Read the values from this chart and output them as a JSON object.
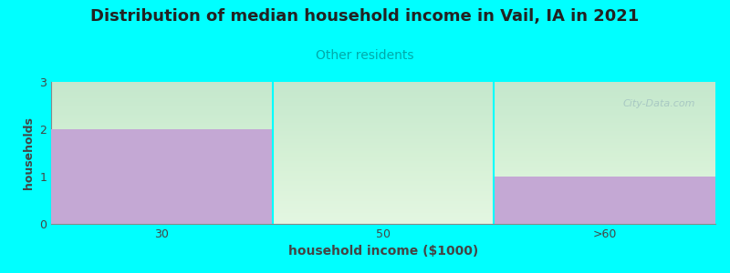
{
  "title": "Distribution of median household income in Vail, IA in 2021",
  "subtitle": "Other residents",
  "xlabel": "household income ($1000)",
  "ylabel": "households",
  "categories": [
    "30",
    "50",
    ">60"
  ],
  "values": [
    2,
    0,
    1
  ],
  "bar_color": "#C4A8D4",
  "background_color": "#00FFFF",
  "plot_bg_top": "#D8EED8",
  "plot_bg_bottom": "#F5FFF5",
  "title_fontsize": 13,
  "subtitle_fontsize": 10,
  "subtitle_color": "#00AAAA",
  "xlabel_fontsize": 10,
  "ylabel_fontsize": 9,
  "tick_fontsize": 9,
  "ylim": [
    0,
    3
  ],
  "yticks": [
    0,
    1,
    2,
    3
  ],
  "watermark": "City-Data.com",
  "watermark_color": "#A0C0C0",
  "divider_color": "#00FFFF"
}
